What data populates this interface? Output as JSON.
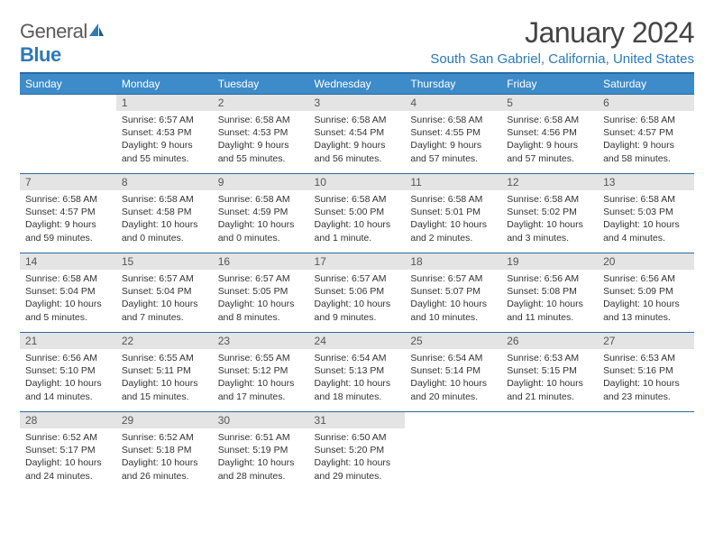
{
  "logo": {
    "text1": "General",
    "text2": "Blue"
  },
  "title": "January 2024",
  "location": "South San Gabriel, California, United States",
  "colors": {
    "header_bg": "#3d8bc9",
    "header_border": "#2a6ca3",
    "daynum_bg": "#e4e4e4",
    "brand_blue": "#2a7ab9",
    "text": "#333333"
  },
  "weekdays": [
    "Sunday",
    "Monday",
    "Tuesday",
    "Wednesday",
    "Thursday",
    "Friday",
    "Saturday"
  ],
  "weeks": [
    [
      {
        "n": "",
        "sr": "",
        "ss": "",
        "d1": "",
        "d2": ""
      },
      {
        "n": "1",
        "sr": "Sunrise: 6:57 AM",
        "ss": "Sunset: 4:53 PM",
        "d1": "Daylight: 9 hours",
        "d2": "and 55 minutes."
      },
      {
        "n": "2",
        "sr": "Sunrise: 6:58 AM",
        "ss": "Sunset: 4:53 PM",
        "d1": "Daylight: 9 hours",
        "d2": "and 55 minutes."
      },
      {
        "n": "3",
        "sr": "Sunrise: 6:58 AM",
        "ss": "Sunset: 4:54 PM",
        "d1": "Daylight: 9 hours",
        "d2": "and 56 minutes."
      },
      {
        "n": "4",
        "sr": "Sunrise: 6:58 AM",
        "ss": "Sunset: 4:55 PM",
        "d1": "Daylight: 9 hours",
        "d2": "and 57 minutes."
      },
      {
        "n": "5",
        "sr": "Sunrise: 6:58 AM",
        "ss": "Sunset: 4:56 PM",
        "d1": "Daylight: 9 hours",
        "d2": "and 57 minutes."
      },
      {
        "n": "6",
        "sr": "Sunrise: 6:58 AM",
        "ss": "Sunset: 4:57 PM",
        "d1": "Daylight: 9 hours",
        "d2": "and 58 minutes."
      }
    ],
    [
      {
        "n": "7",
        "sr": "Sunrise: 6:58 AM",
        "ss": "Sunset: 4:57 PM",
        "d1": "Daylight: 9 hours",
        "d2": "and 59 minutes."
      },
      {
        "n": "8",
        "sr": "Sunrise: 6:58 AM",
        "ss": "Sunset: 4:58 PM",
        "d1": "Daylight: 10 hours",
        "d2": "and 0 minutes."
      },
      {
        "n": "9",
        "sr": "Sunrise: 6:58 AM",
        "ss": "Sunset: 4:59 PM",
        "d1": "Daylight: 10 hours",
        "d2": "and 0 minutes."
      },
      {
        "n": "10",
        "sr": "Sunrise: 6:58 AM",
        "ss": "Sunset: 5:00 PM",
        "d1": "Daylight: 10 hours",
        "d2": "and 1 minute."
      },
      {
        "n": "11",
        "sr": "Sunrise: 6:58 AM",
        "ss": "Sunset: 5:01 PM",
        "d1": "Daylight: 10 hours",
        "d2": "and 2 minutes."
      },
      {
        "n": "12",
        "sr": "Sunrise: 6:58 AM",
        "ss": "Sunset: 5:02 PM",
        "d1": "Daylight: 10 hours",
        "d2": "and 3 minutes."
      },
      {
        "n": "13",
        "sr": "Sunrise: 6:58 AM",
        "ss": "Sunset: 5:03 PM",
        "d1": "Daylight: 10 hours",
        "d2": "and 4 minutes."
      }
    ],
    [
      {
        "n": "14",
        "sr": "Sunrise: 6:58 AM",
        "ss": "Sunset: 5:04 PM",
        "d1": "Daylight: 10 hours",
        "d2": "and 5 minutes."
      },
      {
        "n": "15",
        "sr": "Sunrise: 6:57 AM",
        "ss": "Sunset: 5:04 PM",
        "d1": "Daylight: 10 hours",
        "d2": "and 7 minutes."
      },
      {
        "n": "16",
        "sr": "Sunrise: 6:57 AM",
        "ss": "Sunset: 5:05 PM",
        "d1": "Daylight: 10 hours",
        "d2": "and 8 minutes."
      },
      {
        "n": "17",
        "sr": "Sunrise: 6:57 AM",
        "ss": "Sunset: 5:06 PM",
        "d1": "Daylight: 10 hours",
        "d2": "and 9 minutes."
      },
      {
        "n": "18",
        "sr": "Sunrise: 6:57 AM",
        "ss": "Sunset: 5:07 PM",
        "d1": "Daylight: 10 hours",
        "d2": "and 10 minutes."
      },
      {
        "n": "19",
        "sr": "Sunrise: 6:56 AM",
        "ss": "Sunset: 5:08 PM",
        "d1": "Daylight: 10 hours",
        "d2": "and 11 minutes."
      },
      {
        "n": "20",
        "sr": "Sunrise: 6:56 AM",
        "ss": "Sunset: 5:09 PM",
        "d1": "Daylight: 10 hours",
        "d2": "and 13 minutes."
      }
    ],
    [
      {
        "n": "21",
        "sr": "Sunrise: 6:56 AM",
        "ss": "Sunset: 5:10 PM",
        "d1": "Daylight: 10 hours",
        "d2": "and 14 minutes."
      },
      {
        "n": "22",
        "sr": "Sunrise: 6:55 AM",
        "ss": "Sunset: 5:11 PM",
        "d1": "Daylight: 10 hours",
        "d2": "and 15 minutes."
      },
      {
        "n": "23",
        "sr": "Sunrise: 6:55 AM",
        "ss": "Sunset: 5:12 PM",
        "d1": "Daylight: 10 hours",
        "d2": "and 17 minutes."
      },
      {
        "n": "24",
        "sr": "Sunrise: 6:54 AM",
        "ss": "Sunset: 5:13 PM",
        "d1": "Daylight: 10 hours",
        "d2": "and 18 minutes."
      },
      {
        "n": "25",
        "sr": "Sunrise: 6:54 AM",
        "ss": "Sunset: 5:14 PM",
        "d1": "Daylight: 10 hours",
        "d2": "and 20 minutes."
      },
      {
        "n": "26",
        "sr": "Sunrise: 6:53 AM",
        "ss": "Sunset: 5:15 PM",
        "d1": "Daylight: 10 hours",
        "d2": "and 21 minutes."
      },
      {
        "n": "27",
        "sr": "Sunrise: 6:53 AM",
        "ss": "Sunset: 5:16 PM",
        "d1": "Daylight: 10 hours",
        "d2": "and 23 minutes."
      }
    ],
    [
      {
        "n": "28",
        "sr": "Sunrise: 6:52 AM",
        "ss": "Sunset: 5:17 PM",
        "d1": "Daylight: 10 hours",
        "d2": "and 24 minutes."
      },
      {
        "n": "29",
        "sr": "Sunrise: 6:52 AM",
        "ss": "Sunset: 5:18 PM",
        "d1": "Daylight: 10 hours",
        "d2": "and 26 minutes."
      },
      {
        "n": "30",
        "sr": "Sunrise: 6:51 AM",
        "ss": "Sunset: 5:19 PM",
        "d1": "Daylight: 10 hours",
        "d2": "and 28 minutes."
      },
      {
        "n": "31",
        "sr": "Sunrise: 6:50 AM",
        "ss": "Sunset: 5:20 PM",
        "d1": "Daylight: 10 hours",
        "d2": "and 29 minutes."
      },
      {
        "n": "",
        "sr": "",
        "ss": "",
        "d1": "",
        "d2": ""
      },
      {
        "n": "",
        "sr": "",
        "ss": "",
        "d1": "",
        "d2": ""
      },
      {
        "n": "",
        "sr": "",
        "ss": "",
        "d1": "",
        "d2": ""
      }
    ]
  ]
}
